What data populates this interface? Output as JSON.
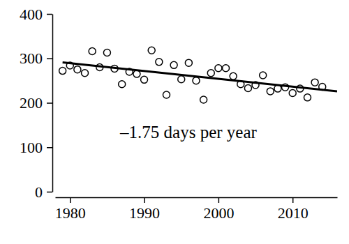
{
  "chart_data": {
    "type": "scatter",
    "annotation": "–1.75 days per year",
    "series": [
      {
        "type": "scatter",
        "marker": "circle",
        "color": "#000000",
        "x": [
          1979,
          1980,
          1981,
          1982,
          1983,
          1984,
          1985,
          1986,
          1987,
          1988,
          1989,
          1990,
          1991,
          1992,
          1993,
          1994,
          1995,
          1996,
          1997,
          1998,
          1999,
          2000,
          2001,
          2002,
          2003,
          2004,
          2005,
          2006,
          2007,
          2008,
          2009,
          2010,
          2011,
          2012,
          2013,
          2014
        ],
        "values": [
          272,
          284,
          275,
          267,
          316,
          280,
          313,
          277,
          242,
          270,
          265,
          252,
          318,
          292,
          218,
          285,
          253,
          290,
          250,
          207,
          267,
          278,
          278,
          260,
          242,
          233,
          240,
          262,
          226,
          232,
          235,
          222,
          232,
          212,
          246,
          236
        ]
      },
      {
        "type": "line",
        "line_style": "solid",
        "color": "#000000",
        "x": [
          1979,
          2016
        ],
        "values": [
          291,
          226
        ]
      }
    ],
    "xlim": [
      1978,
      2016
    ],
    "xticks": [
      1980,
      1990,
      2000,
      2010
    ],
    "ylim": [
      0,
      400
    ],
    "yticks": [
      0,
      100,
      200,
      300,
      400
    ],
    "grid": false
  }
}
